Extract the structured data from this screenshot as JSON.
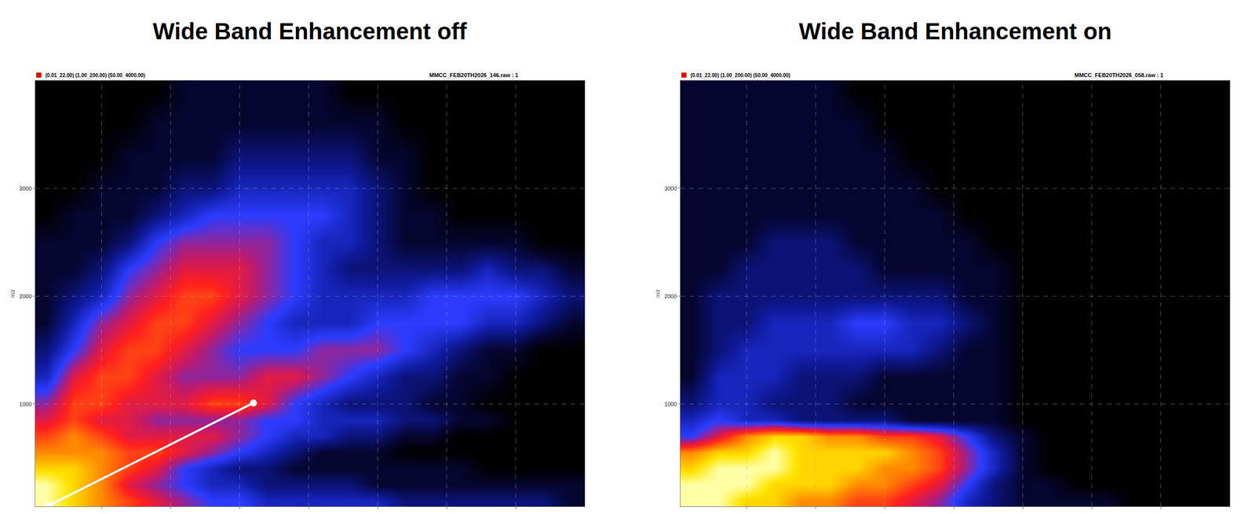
{
  "chart_data": [
    {
      "type": "heatmap",
      "title": "Wide Band Enhancement off",
      "subtitle": "(0.01_22.00) (1.00_200.00) (50.00_4000.00)",
      "file_label": "MMCC_FEB20TH2026_146.raw : 1",
      "ylabel": "m/z",
      "xlim": [
        1,
        200
      ],
      "ylim": [
        50,
        4000
      ],
      "xticks": [
        25,
        50,
        75,
        100,
        125,
        150,
        175
      ],
      "yticks": [
        1000,
        2000,
        3000
      ],
      "grid": true,
      "tick_labels": "y",
      "zlim": [
        0,
        10
      ],
      "x": [
        5,
        15,
        25,
        35,
        45,
        55,
        65,
        75,
        85,
        95,
        105,
        115,
        125,
        135,
        145,
        155,
        165,
        175,
        185,
        195
      ],
      "y": [
        100,
        250,
        400,
        550,
        700,
        850,
        1000,
        1250,
        1500,
        1750,
        2000,
        2250,
        2500,
        2750,
        3000,
        3300,
        3600,
        3900
      ],
      "z": [
        [
          10,
          9,
          8,
          7,
          6,
          5,
          4,
          4,
          3,
          3,
          3,
          3,
          3,
          2,
          2,
          2,
          2,
          2,
          2,
          1
        ],
        [
          10,
          9,
          8,
          6,
          5,
          4,
          3,
          3,
          2,
          2,
          2,
          2,
          1,
          1,
          1,
          1,
          1,
          1,
          1,
          1
        ],
        [
          9,
          9,
          8,
          7,
          6,
          4,
          3,
          2,
          2,
          1,
          1,
          1,
          1,
          1,
          1,
          1,
          0,
          0,
          0,
          0
        ],
        [
          8,
          8,
          8,
          7,
          7,
          6,
          5,
          4,
          3,
          2,
          1,
          1,
          1,
          0,
          0,
          0,
          0,
          0,
          0,
          0
        ],
        [
          7,
          8,
          7,
          6,
          6,
          6,
          6,
          5,
          4,
          3,
          3,
          2,
          2,
          1,
          1,
          0,
          0,
          0,
          0,
          0
        ],
        [
          6,
          7,
          6,
          6,
          5,
          5,
          5,
          5,
          4,
          4,
          3,
          3,
          3,
          2,
          2,
          1,
          1,
          0,
          0,
          0
        ],
        [
          5,
          7,
          7,
          6,
          6,
          6,
          7,
          7,
          6,
          4,
          3,
          2,
          2,
          2,
          1,
          1,
          0,
          0,
          0,
          0
        ],
        [
          3,
          6,
          7,
          7,
          6,
          5,
          5,
          5,
          6,
          6,
          5,
          4,
          3,
          2,
          2,
          1,
          1,
          0,
          0,
          0
        ],
        [
          2,
          4,
          6,
          7,
          7,
          6,
          5,
          4,
          4,
          4,
          5,
          5,
          5,
          4,
          3,
          2,
          1,
          1,
          0,
          0
        ],
        [
          1,
          3,
          5,
          6,
          7,
          7,
          6,
          5,
          4,
          3,
          3,
          3,
          4,
          4,
          4,
          4,
          3,
          3,
          2,
          1
        ],
        [
          1,
          2,
          3,
          5,
          6,
          7,
          7,
          6,
          5,
          4,
          3,
          3,
          3,
          3,
          4,
          4,
          4,
          4,
          3,
          2
        ],
        [
          1,
          1,
          2,
          4,
          5,
          6,
          6,
          6,
          5,
          4,
          3,
          2,
          2,
          2,
          2,
          2,
          3,
          2,
          2,
          1
        ],
        [
          1,
          1,
          1,
          2,
          4,
          5,
          5,
          5,
          5,
          4,
          3,
          3,
          2,
          1,
          1,
          1,
          1,
          1,
          0,
          0
        ],
        [
          0,
          1,
          1,
          1,
          2,
          3,
          4,
          4,
          4,
          4,
          4,
          3,
          2,
          1,
          1,
          0,
          0,
          0,
          0,
          0
        ],
        [
          0,
          0,
          1,
          1,
          1,
          2,
          2,
          3,
          3,
          3,
          3,
          3,
          2,
          1,
          0,
          0,
          0,
          0,
          0,
          0
        ],
        [
          0,
          0,
          0,
          1,
          1,
          1,
          1,
          2,
          2,
          2,
          2,
          2,
          1,
          1,
          0,
          0,
          0,
          0,
          0,
          0
        ],
        [
          0,
          0,
          0,
          0,
          1,
          1,
          1,
          1,
          1,
          1,
          1,
          1,
          1,
          0,
          0,
          0,
          0,
          0,
          0,
          0
        ],
        [
          0,
          0,
          0,
          0,
          0,
          1,
          1,
          1,
          1,
          1,
          1,
          0,
          0,
          0,
          0,
          0,
          0,
          0,
          0,
          0
        ]
      ],
      "annotations": [
        {
          "type": "line",
          "x": [
            6,
            80
          ],
          "y": [
            60,
            1010
          ],
          "color": "#ffffff",
          "marker": "circle"
        }
      ]
    },
    {
      "type": "heatmap",
      "title": "Wide Band Enhancement on",
      "subtitle": "(0.01_22.00) (1.00_200.00) (50.00_4000.00)",
      "file_label": "MMCC_FEB20TH2026_058.raw : 1",
      "ylabel": "m/z",
      "xlim": [
        1,
        200
      ],
      "ylim": [
        50,
        4000
      ],
      "xticks": [
        25,
        50,
        75,
        100,
        125,
        150,
        175
      ],
      "yticks": [
        1000,
        2000,
        3000
      ],
      "grid": true,
      "tick_labels": "y",
      "zlim": [
        0,
        10
      ],
      "x": [
        5,
        15,
        25,
        35,
        45,
        55,
        65,
        75,
        85,
        95,
        105,
        115,
        125,
        135,
        145,
        155,
        165,
        175,
        185,
        195
      ],
      "y": [
        100,
        250,
        400,
        550,
        700,
        850,
        1000,
        1250,
        1500,
        1750,
        2000,
        2250,
        2500,
        2750,
        3000,
        3300,
        3600,
        3900
      ],
      "z": [
        [
          10,
          10,
          9,
          9,
          8,
          8,
          7,
          7,
          6,
          5,
          3,
          2,
          1,
          1,
          1,
          1,
          0,
          0,
          0,
          0
        ],
        [
          10,
          10,
          10,
          9,
          9,
          9,
          8,
          8,
          7,
          6,
          4,
          2,
          1,
          1,
          0,
          0,
          0,
          0,
          0,
          0
        ],
        [
          9,
          10,
          10,
          10,
          9,
          9,
          9,
          8,
          8,
          7,
          5,
          3,
          1,
          0,
          0,
          0,
          0,
          0,
          0,
          0
        ],
        [
          8,
          9,
          9,
          10,
          9,
          9,
          9,
          9,
          8,
          7,
          5,
          3,
          1,
          0,
          0,
          0,
          0,
          0,
          0,
          0
        ],
        [
          4,
          6,
          8,
          9,
          9,
          8,
          8,
          7,
          7,
          6,
          4,
          2,
          1,
          0,
          0,
          0,
          0,
          0,
          0,
          0
        ],
        [
          3,
          4,
          3,
          3,
          2,
          2,
          2,
          2,
          1,
          1,
          1,
          1,
          0,
          0,
          0,
          0,
          0,
          0,
          0,
          0
        ],
        [
          2,
          3,
          3,
          2,
          2,
          2,
          1,
          1,
          1,
          1,
          1,
          1,
          0,
          0,
          0,
          0,
          0,
          0,
          0,
          0
        ],
        [
          1,
          3,
          3,
          3,
          2,
          2,
          2,
          1,
          1,
          1,
          1,
          1,
          0,
          0,
          0,
          0,
          0,
          0,
          0,
          0
        ],
        [
          1,
          2,
          3,
          3,
          3,
          3,
          3,
          3,
          3,
          2,
          1,
          1,
          0,
          0,
          0,
          0,
          0,
          0,
          0,
          0
        ],
        [
          1,
          2,
          2,
          3,
          3,
          3,
          4,
          4,
          3,
          3,
          2,
          1,
          0,
          0,
          0,
          0,
          0,
          0,
          0,
          0
        ],
        [
          1,
          2,
          2,
          2,
          2,
          2,
          2,
          2,
          2,
          2,
          1,
          1,
          0,
          0,
          0,
          0,
          0,
          0,
          0,
          0
        ],
        [
          1,
          1,
          2,
          2,
          2,
          2,
          2,
          1,
          1,
          1,
          1,
          1,
          0,
          0,
          0,
          0,
          0,
          0,
          0,
          0
        ],
        [
          1,
          1,
          1,
          2,
          2,
          2,
          1,
          1,
          1,
          1,
          1,
          0,
          0,
          0,
          0,
          0,
          0,
          0,
          0,
          0
        ],
        [
          1,
          1,
          1,
          1,
          1,
          1,
          1,
          1,
          1,
          1,
          0,
          0,
          0,
          0,
          0,
          0,
          0,
          0,
          0,
          0
        ],
        [
          1,
          1,
          1,
          1,
          1,
          1,
          1,
          1,
          1,
          0,
          0,
          0,
          0,
          0,
          0,
          0,
          0,
          0,
          0,
          0
        ],
        [
          1,
          1,
          1,
          1,
          1,
          1,
          1,
          1,
          0,
          0,
          0,
          0,
          0,
          0,
          0,
          0,
          0,
          0,
          0,
          0
        ],
        [
          1,
          1,
          1,
          1,
          1,
          1,
          1,
          0,
          0,
          0,
          0,
          0,
          0,
          0,
          0,
          0,
          0,
          0,
          0,
          0
        ],
        [
          1,
          1,
          1,
          1,
          1,
          1,
          0,
          0,
          0,
          0,
          0,
          0,
          0,
          0,
          0,
          0,
          0,
          0,
          0,
          0
        ]
      ]
    }
  ]
}
